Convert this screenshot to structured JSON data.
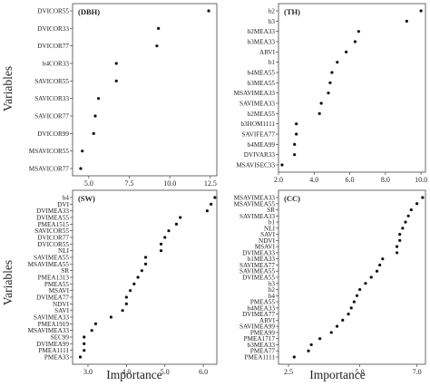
{
  "figure": {
    "y_axis_title": "Variables",
    "x_axis_title": "Importance"
  },
  "chart_data": [
    {
      "type": "scatter",
      "title": "(DBH)",
      "xlabel": "",
      "ylabel": "Variables",
      "xlim": [
        4.0,
        12.9
      ],
      "xticks": [
        5.0,
        7.5,
        10.0,
        12.5
      ],
      "xticklabels": [
        "5.0",
        "7.5",
        "10.0",
        "12.5"
      ],
      "grid": false,
      "categories": [
        "DVICOR55",
        "DVICOR33",
        "DVICOR77",
        "b4COR33",
        "SAVICOR55",
        "SAVICOR33",
        "SAVICOR77",
        "DVICOR99",
        "MSAVICOR55",
        "MSAVICOR77"
      ],
      "values": [
        12.4,
        9.3,
        9.2,
        6.7,
        6.7,
        5.6,
        5.4,
        5.3,
        4.6,
        4.5
      ]
    },
    {
      "type": "scatter",
      "title": "(TH)",
      "xlabel": "",
      "ylabel": "",
      "xlim": [
        2.0,
        10.25
      ],
      "xticks": [
        2.0,
        4.0,
        6.0,
        8.0,
        10.0
      ],
      "xticklabels": [
        "2.0",
        "4.0",
        "6.0",
        "8.0",
        "10.0"
      ],
      "grid": false,
      "categories": [
        "b2",
        "b3",
        "b2MEA33",
        "b3MEA33",
        "ARVI",
        "b1",
        "b4MEA55",
        "b3MEA55",
        "MSAVIMEA33",
        "SAVIMEA33",
        "b2MEA55",
        "b3HOM1111",
        "SAVIFEA77",
        "b4MEA99",
        "DVIVAR33",
        "MSAVISEC33"
      ],
      "values": [
        10.0,
        9.2,
        6.5,
        6.3,
        5.8,
        5.3,
        5.0,
        4.9,
        4.8,
        4.4,
        4.3,
        3.0,
        3.0,
        2.9,
        2.9,
        2.2
      ]
    },
    {
      "type": "scatter",
      "title": "(SW)",
      "xlabel": "Importance",
      "ylabel": "Variables",
      "xlim": [
        2.6,
        6.35
      ],
      "xticks": [
        3.0,
        4.0,
        5.0,
        6.0
      ],
      "xticklabels": [
        "3.0",
        "4.0",
        "5.0",
        "6.0"
      ],
      "grid": false,
      "categories": [
        "b4",
        "DVI",
        "DVIMEA33",
        "DVIMEA55",
        "PMEA1515",
        "SAVICOR55",
        "DVICOR77",
        "DVICOR55",
        "NLI",
        "SAVIMEA55",
        "MSAVIMEA55",
        "SR",
        "PMEA1313",
        "PMEA55",
        "MSAVI",
        "DVIMEA77",
        "NDVI",
        "SAVI",
        "SAVIMEA33",
        "PMEA1919",
        "MSAVIMEA33",
        "SEC99",
        "DVIMEA99",
        "PMEA1111",
        "PMEA33"
      ],
      "values": [
        6.3,
        6.2,
        6.1,
        5.4,
        5.3,
        5.1,
        5.0,
        4.9,
        4.9,
        4.5,
        4.5,
        4.4,
        4.3,
        4.2,
        4.1,
        4.0,
        4.0,
        3.9,
        3.6,
        3.2,
        3.1,
        2.9,
        2.9,
        2.9,
        2.8
      ]
    },
    {
      "type": "scatter",
      "title": "(CC)",
      "xlabel": "Importance",
      "ylabel": "",
      "xlim": [
        2.15,
        7.3
      ],
      "xticks": [
        2.5,
        5.0,
        7.0
      ],
      "xticklabels": [
        "2.5",
        "5.0",
        "7.0"
      ],
      "grid": false,
      "categories": [
        "MSAVIMEA33",
        "MSAVIMEA55",
        "SR",
        "SAVIMEA33",
        "b1",
        "NLI",
        "SAVI",
        "NDVI",
        "MSAVI",
        "DVIMEA33",
        "b1MEA33",
        "SAVIMEA77",
        "SAVIMEA55",
        "DVIMEA55",
        "b3",
        "b2",
        "b4",
        "PMEA55",
        "b4MEA33",
        "DVIMEA77",
        "ARVI",
        "SAVIMEA99",
        "PMEA99",
        "PMEA1717",
        "b3MEA33",
        "PMEA77",
        "PMEA1111"
      ],
      "values": [
        7.2,
        7.0,
        6.8,
        6.7,
        6.6,
        6.5,
        6.4,
        6.4,
        6.3,
        6.3,
        5.8,
        5.7,
        5.6,
        5.4,
        5.2,
        5.0,
        4.9,
        4.8,
        4.7,
        4.6,
        4.4,
        4.2,
        4.0,
        3.6,
        3.3,
        3.2,
        2.7
      ]
    }
  ]
}
